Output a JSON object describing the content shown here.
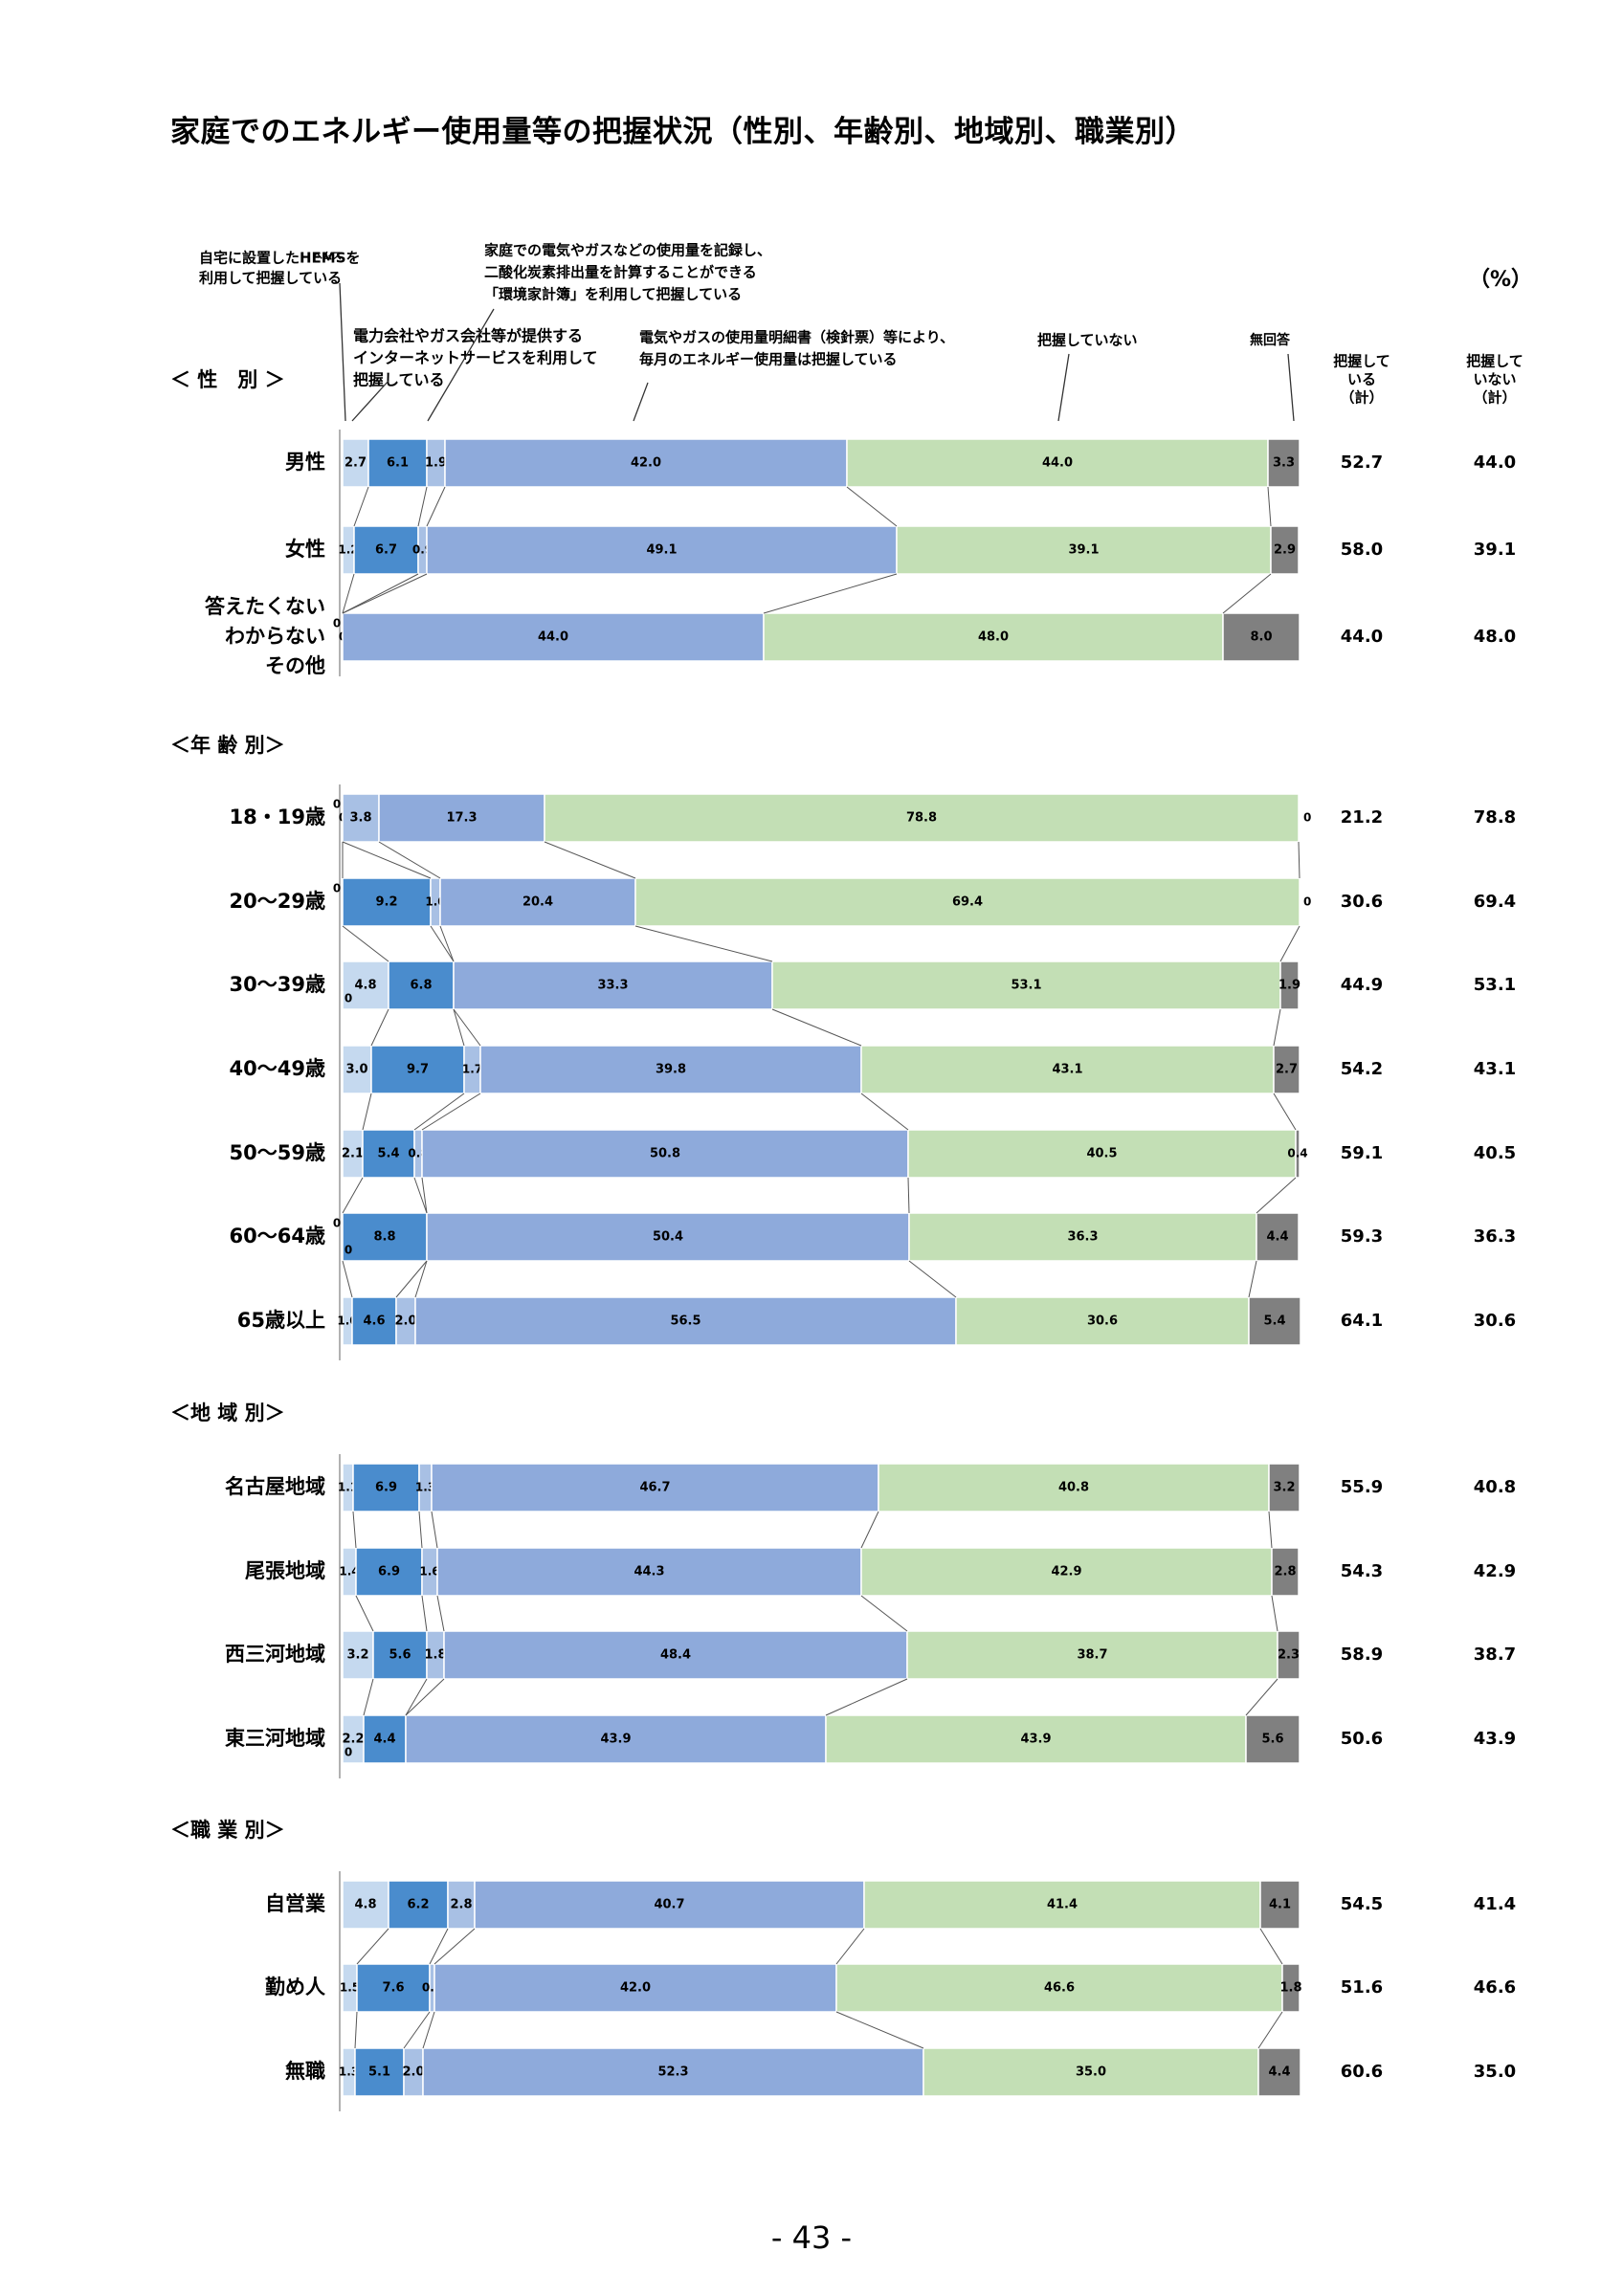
{
  "page": {
    "title": "家庭でのエネルギー使用量等の把握状況（性別、年齢別、地域別、職業別）",
    "page_number": "- 43 -",
    "unit": "（%）"
  },
  "legend": {
    "hems_ruby": "ヘムス",
    "hems": [
      "自宅に設置したHEMSを",
      "利用して把握している"
    ],
    "kankyo": [
      "家庭での電気やガスなどの使用量を記録し、",
      "二酸化炭素排出量を計算することができる",
      "「環境家計簿」を利用して把握している"
    ],
    "internet": [
      "電力会社やガス会社等が提供する",
      "インターネットサービスを利用して",
      "把握している"
    ],
    "meisai": [
      "電気やガスの使用量明細書（検針票）等により、",
      "毎月のエネルギー使用量は把握している"
    ],
    "not": "把握していない",
    "noanswer": "無回答",
    "total_yes": [
      "把握して",
      "いる",
      "（計）"
    ],
    "total_no": [
      "把握して",
      "いない",
      "（計）"
    ]
  },
  "colors": {
    "hems": "#c5d9ef",
    "internet": "#4a8ccd",
    "kankyo": "#a8c0e4",
    "meisai": "#8eaadb",
    "not": "#c3dfb5",
    "noanswer": "#808080"
  },
  "chart_data": {
    "type": "stacked-bar",
    "unit": "%",
    "series": [
      {
        "key": "hems",
        "name": "自宅に設置したHEMSを利用して把握している"
      },
      {
        "key": "internet",
        "name": "電力会社やガス会社等が提供するインターネットサービスを利用して把握している"
      },
      {
        "key": "kankyo",
        "name": "家庭での電気やガスなどの使用量を記録し、二酸化炭素排出量を計算することができる「環境家計簿」を利用して把握している"
      },
      {
        "key": "meisai",
        "name": "電気やガスの使用量明細書（検針票）等により、毎月のエネルギー使用量は把握している"
      },
      {
        "key": "not",
        "name": "把握していない"
      },
      {
        "key": "noanswer",
        "name": "無回答"
      }
    ],
    "groups": [
      {
        "label": "＜ 性　別 ＞",
        "rows": [
          {
            "label": [
              "男性"
            ],
            "values": [
              2.7,
              6.1,
              1.9,
              42.0,
              44.0,
              3.3
            ],
            "labels": [
              "2.7",
              "6.1",
              "1.9",
              "42.0",
              "44.0",
              "3.3"
            ],
            "total_yes": "52.7",
            "total_no": "44.0"
          },
          {
            "label": [
              "女性"
            ],
            "values": [
              1.2,
              6.7,
              0.9,
              49.1,
              39.1,
              2.9
            ],
            "labels": [
              "1.2",
              "6.7",
              "0.9",
              "49.1",
              "39.1",
              "2.9"
            ],
            "total_yes": "58.0",
            "total_no": "39.1"
          },
          {
            "label": [
              "答えたくない",
              "わからない",
              "その他"
            ],
            "values": [
              0,
              0,
              0,
              44.0,
              48.0,
              8.0
            ],
            "labels": [
              "0",
              "0",
              "0",
              "44.0",
              "48.0",
              "8.0"
            ],
            "total_yes": "44.0",
            "total_no": "48.0"
          }
        ]
      },
      {
        "label": "＜年 齢 別＞",
        "rows": [
          {
            "label": [
              "18・19歳"
            ],
            "values": [
              0,
              0,
              3.8,
              17.3,
              78.8,
              0
            ],
            "labels": [
              "0",
              "0",
              "3.8",
              "17.3",
              "78.8",
              "0"
            ],
            "total_yes": "21.2",
            "total_no": "78.8"
          },
          {
            "label": [
              "20～29歳"
            ],
            "values": [
              0,
              9.2,
              1.0,
              20.4,
              69.4,
              0
            ],
            "labels": [
              "0",
              "9.2",
              "1.0",
              "20.4",
              "69.4",
              "0"
            ],
            "total_yes": "30.6",
            "total_no": "69.4"
          },
          {
            "label": [
              "30～39歳"
            ],
            "values": [
              4.8,
              6.8,
              0,
              33.3,
              53.1,
              1.9
            ],
            "labels": [
              "4.8",
              "6.8",
              "0",
              "33.3",
              "53.1",
              "1.9"
            ],
            "total_yes": "44.9",
            "total_no": "53.1"
          },
          {
            "label": [
              "40～49歳"
            ],
            "values": [
              3.0,
              9.7,
              1.7,
              39.8,
              43.1,
              2.7
            ],
            "labels": [
              "3.0",
              "9.7",
              "1.7",
              "39.8",
              "43.1",
              "2.7"
            ],
            "total_yes": "54.2",
            "total_no": "43.1"
          },
          {
            "label": [
              "50～59歳"
            ],
            "values": [
              2.1,
              5.4,
              0.8,
              50.8,
              40.5,
              0.4
            ],
            "labels": [
              "2.1",
              "5.4",
              "0.8",
              "50.8",
              "40.5",
              "0.4"
            ],
            "total_yes": "59.1",
            "total_no": "40.5"
          },
          {
            "label": [
              "60～64歳"
            ],
            "values": [
              0,
              8.8,
              0,
              50.4,
              36.3,
              4.4
            ],
            "labels": [
              "0",
              "8.8",
              "0",
              "50.4",
              "36.3",
              "4.4"
            ],
            "total_yes": "59.3",
            "total_no": "36.3"
          },
          {
            "label": [
              "65歳以上"
            ],
            "values": [
              1.0,
              4.6,
              2.0,
              56.5,
              30.6,
              5.4
            ],
            "labels": [
              "1.0",
              "4.6",
              "2.0",
              "56.5",
              "30.6",
              "5.4"
            ],
            "total_yes": "64.1",
            "total_no": "30.6"
          }
        ]
      },
      {
        "label": "＜地 域 別＞",
        "rows": [
          {
            "label": [
              "名古屋地域"
            ],
            "values": [
              1.1,
              6.9,
              1.3,
              46.7,
              40.8,
              3.2
            ],
            "labels": [
              "1.1",
              "6.9",
              "1.3",
              "46.7",
              "40.8",
              "3.2"
            ],
            "total_yes": "55.9",
            "total_no": "40.8"
          },
          {
            "label": [
              "尾張地域"
            ],
            "values": [
              1.4,
              6.9,
              1.6,
              44.3,
              42.9,
              2.8
            ],
            "labels": [
              "1.4",
              "6.9",
              "1.6",
              "44.3",
              "42.9",
              "2.8"
            ],
            "total_yes": "54.3",
            "total_no": "42.9"
          },
          {
            "label": [
              "西三河地域"
            ],
            "values": [
              3.2,
              5.6,
              1.8,
              48.4,
              38.7,
              2.3
            ],
            "labels": [
              "3.2",
              "5.6",
              "1.8",
              "48.4",
              "38.7",
              "2.3"
            ],
            "total_yes": "58.9",
            "total_no": "38.7"
          },
          {
            "label": [
              "東三河地域"
            ],
            "values": [
              2.2,
              4.4,
              0,
              43.9,
              43.9,
              5.6
            ],
            "labels": [
              "2.2",
              "4.4",
              "0",
              "43.9",
              "43.9",
              "5.6"
            ],
            "total_yes": "50.6",
            "total_no": "43.9"
          }
        ]
      },
      {
        "label": "＜職 業 別＞",
        "rows": [
          {
            "label": [
              "自営業"
            ],
            "values": [
              4.8,
              6.2,
              2.8,
              40.7,
              41.4,
              4.1
            ],
            "labels": [
              "4.8",
              "6.2",
              "2.8",
              "40.7",
              "41.4",
              "4.1"
            ],
            "total_yes": "54.5",
            "total_no": "41.4"
          },
          {
            "label": [
              "勤め人"
            ],
            "values": [
              1.5,
              7.6,
              0.5,
              42.0,
              46.6,
              1.8
            ],
            "labels": [
              "1.5",
              "7.6",
              "0.5",
              "42.0",
              "46.6",
              "1.8"
            ],
            "total_yes": "51.6",
            "total_no": "46.6"
          },
          {
            "label": [
              "無職"
            ],
            "values": [
              1.3,
              5.1,
              2.0,
              52.3,
              35.0,
              4.4
            ],
            "labels": [
              "1.3",
              "5.1",
              "2.0",
              "52.3",
              "35.0",
              "4.4"
            ],
            "total_yes": "60.6",
            "total_no": "35.0"
          }
        ]
      }
    ]
  }
}
